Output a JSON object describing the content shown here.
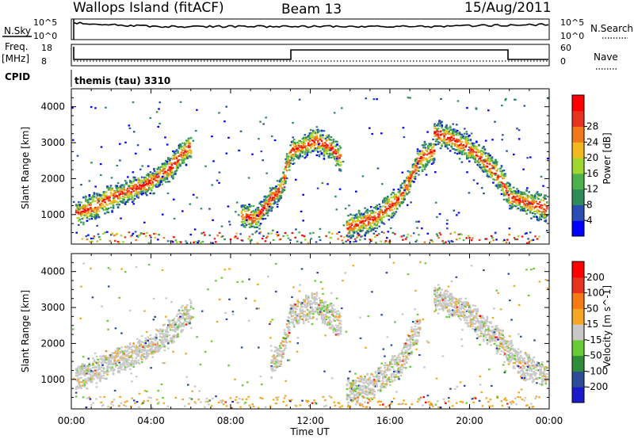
{
  "header": {
    "radar": "Wallops Island (fitACF)",
    "beam": "Beam 13",
    "date": "15/Aug/2011"
  },
  "strips": {
    "nsky_label": "N.Sky",
    "nsky_top": "10^5",
    "nsky_bottom": "10^0",
    "nsearch_label": "N.Search",
    "nsearch_top": "10^5",
    "nsearch_bottom": "10^0",
    "freq_label": "Freq.",
    "freq_unit": "[MHz]",
    "freq_top": "18",
    "freq_bottom": "8",
    "nave_label": "Nave",
    "nave_top": "60",
    "nave_bottom": "0",
    "cpid_label": "CPID",
    "cpid_value": "themis (tau) 3310"
  },
  "axes": {
    "x_ticks": [
      "00:00",
      "04:00",
      "08:00",
      "12:00",
      "16:00",
      "20:00",
      "00:00"
    ],
    "x_label": "Time UT",
    "y_ticks": [
      "1000",
      "2000",
      "3000",
      "4000"
    ],
    "y_label": "Slant Range [km]"
  },
  "power_scale": {
    "label": "Power [dB]",
    "ticks": [
      "4",
      "8",
      "12",
      "16",
      "20",
      "24",
      "28"
    ],
    "colors": [
      "#0000ff",
      "#2a4db3",
      "#2f8c5a",
      "#4db04d",
      "#a0d62e",
      "#f2b81f",
      "#f2781a",
      "#e8321e",
      "#ff0000"
    ]
  },
  "velocity_scale": {
    "label": "Velocity [m s^-1]",
    "ticks": [
      "200",
      "100",
      "50",
      "15",
      "-15",
      "-50",
      "-100",
      "-200"
    ],
    "colors": [
      "#1a1acc",
      "#2e4d99",
      "#2e8c3a",
      "#66cc33",
      "#c8c8c8",
      "#f5a623",
      "#f57a12",
      "#e8321e",
      "#ff0000"
    ]
  },
  "chart_data": [
    {
      "type": "heatmap",
      "title": "Power",
      "x_range_hours": [
        0,
        24
      ],
      "y_range_km": [
        180,
        4500
      ],
      "features": [
        {
          "name": "band-A",
          "points": [
            [
              0.2,
              1050
            ],
            [
              1,
              1230
            ],
            [
              2,
              1500
            ],
            [
              3,
              1700
            ],
            [
              4,
              1950
            ],
            [
              5,
              2350
            ],
            [
              5.5,
              2700
            ],
            [
              6,
              2950
            ]
          ]
        },
        {
          "name": "band-B",
          "points": [
            [
              8.5,
              1000
            ],
            [
              9.2,
              900
            ],
            [
              10,
              1450
            ],
            [
              10.5,
              1750
            ],
            [
              11,
              2800
            ],
            [
              11.6,
              2900
            ],
            [
              12.2,
              3100
            ],
            [
              13,
              2900
            ],
            [
              13.5,
              2550
            ]
          ]
        },
        {
          "name": "band-C",
          "points": [
            [
              13.8,
              650
            ],
            [
              14.5,
              800
            ],
            [
              15.2,
              900
            ],
            [
              16.5,
              1500
            ],
            [
              17.5,
              2600
            ],
            [
              18.2,
              2800
            ]
          ]
        },
        {
          "name": "band-D",
          "points": [
            [
              18.2,
              3300
            ],
            [
              19,
              3150
            ],
            [
              20,
              2850
            ],
            [
              20.8,
              2450
            ],
            [
              21.5,
              2050
            ],
            [
              22,
              1500
            ],
            [
              22.6,
              1400
            ],
            [
              23.5,
              1250
            ],
            [
              24,
              1150
            ]
          ]
        }
      ]
    },
    {
      "type": "heatmap",
      "title": "Velocity",
      "x_range_hours": [
        0,
        24
      ],
      "y_range_km": [
        180,
        4500
      ],
      "features": [
        {
          "name": "band-A",
          "points": [
            [
              0.2,
              1050
            ],
            [
              1,
              1230
            ],
            [
              2,
              1500
            ],
            [
              3,
              1700
            ],
            [
              4,
              1950
            ],
            [
              5,
              2350
            ],
            [
              5.5,
              2700
            ],
            [
              6,
              2950
            ]
          ]
        },
        {
          "name": "band-B",
          "points": [
            [
              10,
              1450
            ],
            [
              10.5,
              1750
            ],
            [
              11,
              2800
            ],
            [
              12.2,
              3100
            ],
            [
              13.5,
              2550
            ]
          ]
        },
        {
          "name": "band-C",
          "points": [
            [
              13.8,
              650
            ],
            [
              15.2,
              900
            ],
            [
              16.5,
              1500
            ],
            [
              17.5,
              2600
            ]
          ]
        },
        {
          "name": "band-D",
          "points": [
            [
              18.2,
              3300
            ],
            [
              20,
              2850
            ],
            [
              21.5,
              2050
            ],
            [
              22.6,
              1400
            ],
            [
              24,
              1150
            ]
          ]
        }
      ]
    }
  ]
}
